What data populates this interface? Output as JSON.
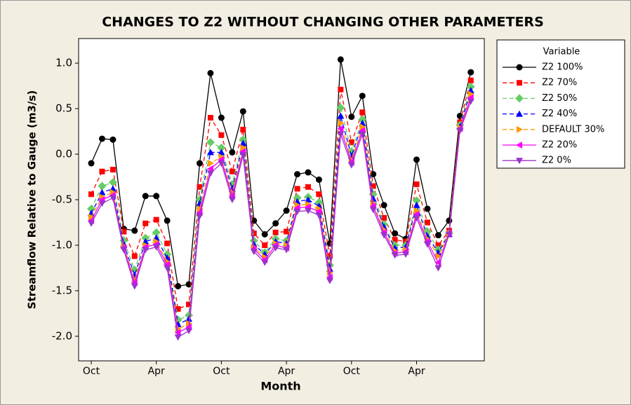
{
  "chart_data": {
    "type": "line",
    "title": "CHANGES TO Z2 WITHOUT CHANGING OTHER PARAMETERS",
    "xlabel": "Month",
    "ylabel": "Streamflow Relative to Gauge (m3/s)",
    "legend_title": "Variable",
    "legend": "outside-right",
    "categories": [
      "Oct",
      null,
      null,
      null,
      null,
      null,
      "Apr",
      null,
      null,
      null,
      null,
      null,
      "Oct",
      null,
      null,
      null,
      null,
      null,
      "Apr",
      null,
      null,
      null,
      null,
      null,
      "Oct",
      null,
      null,
      null,
      null,
      null,
      "Apr",
      null,
      null,
      null,
      null,
      null
    ],
    "ylim": [
      -2.27,
      1.27
    ],
    "yticks": [
      {
        "value": 1,
        "label": "1.0"
      },
      0.5,
      {
        "value": 0,
        "label": "0.0"
      },
      -0.5,
      {
        "value": -1,
        "label": "-1.0"
      },
      -1.5,
      {
        "value": -2,
        "label": "-2.0"
      }
    ],
    "series": [
      {
        "name": "Z2 100%",
        "color": "#000000",
        "marker": "circle",
        "dashed": false,
        "values": [
          -0.1,
          0.17,
          0.16,
          -0.82,
          -0.84,
          -0.46,
          -0.46,
          -0.73,
          -1.45,
          -1.43,
          -0.1,
          0.89,
          0.4,
          0.02,
          0.47,
          -0.73,
          -0.88,
          -0.76,
          -0.62,
          -0.22,
          -0.2,
          -0.28,
          -0.98,
          1.04,
          0.41,
          0.64,
          -0.22,
          -0.56,
          -0.87,
          -0.93,
          -0.06,
          -0.6,
          -0.89,
          -0.73,
          0.42,
          0.9
        ]
      },
      {
        "name": "Z2 70%",
        "color": "#ff0000",
        "marker": "square",
        "dashed": true,
        "values": [
          -0.44,
          -0.19,
          -0.17,
          -0.85,
          -1.12,
          -0.76,
          -0.72,
          -0.98,
          -1.7,
          -1.65,
          -0.36,
          0.4,
          0.21,
          -0.19,
          0.27,
          -0.87,
          -1.0,
          -0.86,
          -0.85,
          -0.38,
          -0.36,
          -0.44,
          -1.12,
          0.71,
          0.13,
          0.46,
          -0.35,
          -0.7,
          -0.94,
          -0.96,
          -0.33,
          -0.75,
          -1.0,
          -0.84,
          0.35,
          0.81
        ]
      },
      {
        "name": "Z2 50%",
        "color": "#66cc66",
        "marker": "diamond",
        "dashed": true,
        "values": [
          -0.6,
          -0.35,
          -0.31,
          -0.95,
          -1.27,
          -0.92,
          -0.86,
          -1.1,
          -1.82,
          -1.77,
          -0.5,
          0.13,
          0.07,
          -0.33,
          0.16,
          -0.95,
          -1.08,
          -0.93,
          -0.95,
          -0.48,
          -0.47,
          -0.53,
          -1.22,
          0.51,
          0.03,
          0.38,
          -0.44,
          -0.77,
          -1.0,
          -1.0,
          -0.51,
          -0.85,
          -1.05,
          -0.87,
          0.32,
          0.74
        ]
      },
      {
        "name": "Z2 40%",
        "color": "#0000ff",
        "marker": "triangle-up",
        "dashed": true,
        "values": [
          -0.65,
          -0.42,
          -0.38,
          -0.99,
          -1.33,
          -0.96,
          -0.92,
          -1.14,
          -1.87,
          -1.81,
          -0.54,
          0.02,
          0.02,
          -0.38,
          0.12,
          -0.99,
          -1.1,
          -0.96,
          -0.98,
          -0.52,
          -0.5,
          -0.57,
          -1.26,
          0.42,
          -0.02,
          0.34,
          -0.49,
          -0.8,
          -1.03,
          -1.02,
          -0.56,
          -0.9,
          -1.08,
          -0.88,
          0.3,
          0.7
        ]
      },
      {
        "name": "DEFAULT 30%",
        "color": "#ff9900",
        "marker": "triangle-right",
        "dashed": true,
        "values": [
          -0.69,
          -0.47,
          -0.42,
          -1.01,
          -1.38,
          -1.0,
          -0.96,
          -1.18,
          -1.92,
          -1.86,
          -0.6,
          -0.1,
          -0.03,
          -0.42,
          0.07,
          -1.02,
          -1.13,
          -0.98,
          -1.0,
          -0.56,
          -0.55,
          -0.6,
          -1.3,
          0.34,
          -0.06,
          0.3,
          -0.54,
          -0.83,
          -1.06,
          -1.05,
          -0.62,
          -0.93,
          -1.12,
          -0.87,
          0.29,
          0.66
        ]
      },
      {
        "name": "Z2 20%",
        "color": "#ff00ff",
        "marker": "triangle-left",
        "dashed": false,
        "values": [
          -0.73,
          -0.5,
          -0.45,
          -1.03,
          -1.41,
          -1.02,
          -0.99,
          -1.21,
          -1.96,
          -1.9,
          -0.64,
          -0.16,
          -0.06,
          -0.46,
          0.03,
          -1.04,
          -1.16,
          -1.0,
          -1.03,
          -0.59,
          -0.58,
          -0.63,
          -1.35,
          0.28,
          -0.09,
          0.26,
          -0.57,
          -0.86,
          -1.09,
          -1.07,
          -0.66,
          -0.96,
          -1.19,
          -0.87,
          0.28,
          0.62
        ]
      },
      {
        "name": "Z2 0%",
        "color": "#9933cc",
        "marker": "triangle-down",
        "dashed": false,
        "values": [
          -0.76,
          -0.54,
          -0.48,
          -1.05,
          -1.45,
          -1.05,
          -1.02,
          -1.25,
          -2.01,
          -1.94,
          -0.68,
          -0.21,
          -0.1,
          -0.5,
          -0.01,
          -1.07,
          -1.19,
          -1.03,
          -1.05,
          -0.63,
          -0.62,
          -0.67,
          -1.39,
          0.22,
          -0.12,
          0.22,
          -0.61,
          -0.89,
          -1.11,
          -1.1,
          -0.7,
          -0.99,
          -1.25,
          -0.88,
          0.26,
          0.58
        ]
      }
    ]
  }
}
